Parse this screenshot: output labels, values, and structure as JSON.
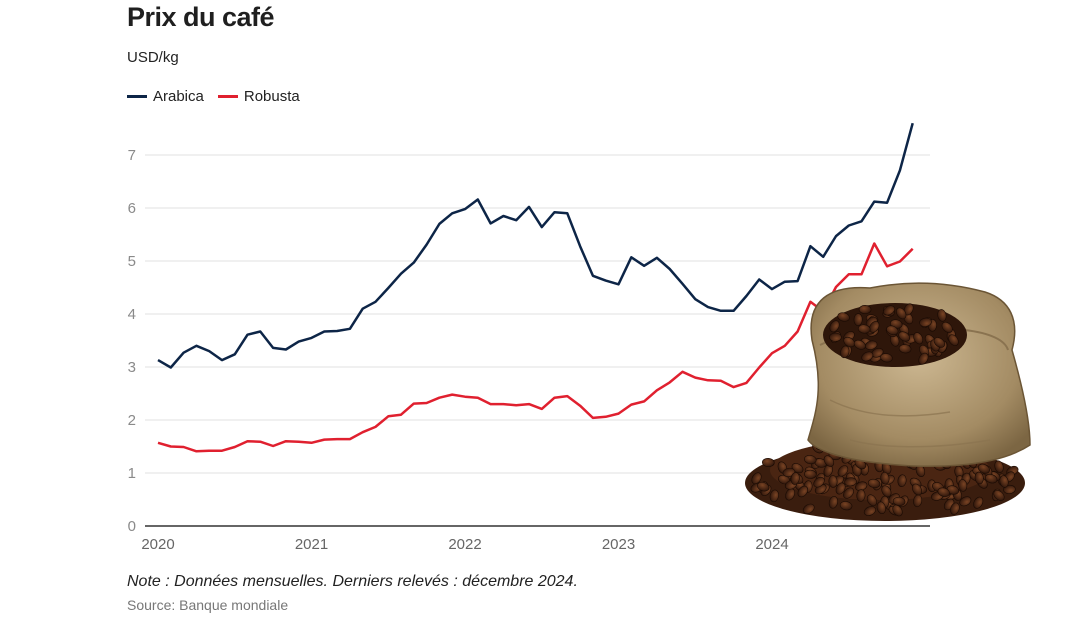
{
  "chart_data": {
    "type": "line",
    "title": "Prix du café",
    "unit": "USD/kg",
    "ylim": [
      0,
      7.6
    ],
    "yticks": [
      0,
      1,
      2,
      3,
      4,
      5,
      6,
      7
    ],
    "xticks": [
      2020,
      2021,
      2022,
      2023,
      2024
    ],
    "xlim": [
      2020.0,
      2025.0
    ],
    "grid": true,
    "legend_position": "top-left",
    "start": "2020-01",
    "x": [
      "2020-01",
      "2020-02",
      "2020-03",
      "2020-04",
      "2020-05",
      "2020-06",
      "2020-07",
      "2020-08",
      "2020-09",
      "2020-10",
      "2020-11",
      "2020-12",
      "2021-01",
      "2021-02",
      "2021-03",
      "2021-04",
      "2021-05",
      "2021-06",
      "2021-07",
      "2021-08",
      "2021-09",
      "2021-10",
      "2021-11",
      "2021-12",
      "2022-01",
      "2022-02",
      "2022-03",
      "2022-04",
      "2022-05",
      "2022-06",
      "2022-07",
      "2022-08",
      "2022-09",
      "2022-10",
      "2022-11",
      "2022-12",
      "2023-01",
      "2023-02",
      "2023-03",
      "2023-04",
      "2023-05",
      "2023-06",
      "2023-07",
      "2023-08",
      "2023-09",
      "2023-10",
      "2023-11",
      "2023-12",
      "2024-01",
      "2024-02",
      "2024-03",
      "2024-04",
      "2024-05",
      "2024-06",
      "2024-07",
      "2024-08",
      "2024-09",
      "2024-10",
      "2024-11",
      "2024-12"
    ],
    "series": [
      {
        "name": "Arabica",
        "color": "#0d2547",
        "values": [
          3.13,
          2.99,
          3.27,
          3.4,
          3.3,
          3.13,
          3.24,
          3.61,
          3.67,
          3.36,
          3.33,
          3.48,
          3.55,
          3.67,
          3.68,
          3.72,
          4.1,
          4.23,
          4.49,
          4.76,
          4.97,
          5.31,
          5.7,
          5.9,
          5.98,
          6.16,
          5.71,
          5.85,
          5.77,
          6.02,
          5.64,
          5.92,
          5.9,
          5.28,
          4.72,
          4.63,
          4.56,
          5.07,
          4.91,
          5.06,
          4.85,
          4.57,
          4.28,
          4.13,
          4.06,
          4.06,
          4.34,
          4.65,
          4.47,
          4.61,
          4.62,
          5.28,
          5.08,
          5.47,
          5.67,
          5.75,
          6.12,
          6.1,
          6.71,
          7.6
        ]
      },
      {
        "name": "Robusta",
        "color": "#e0202f",
        "values": [
          1.57,
          1.5,
          1.49,
          1.41,
          1.42,
          1.42,
          1.49,
          1.6,
          1.59,
          1.51,
          1.6,
          1.59,
          1.57,
          1.63,
          1.64,
          1.64,
          1.77,
          1.87,
          2.07,
          2.1,
          2.31,
          2.32,
          2.42,
          2.48,
          2.44,
          2.42,
          2.3,
          2.3,
          2.28,
          2.3,
          2.21,
          2.42,
          2.45,
          2.27,
          2.04,
          2.06,
          2.12,
          2.29,
          2.35,
          2.56,
          2.71,
          2.91,
          2.8,
          2.75,
          2.74,
          2.62,
          2.7,
          2.99,
          3.26,
          3.4,
          3.67,
          4.23,
          4.05,
          4.51,
          4.75,
          4.75,
          5.33,
          4.9,
          4.99,
          5.23
        ]
      }
    ]
  },
  "footer": {
    "note": "Note : Données mensuelles. Derniers relevés : décembre 2024.",
    "source": "Source: Banque mondiale"
  },
  "image": {
    "name": "coffee-sack-illustration"
  }
}
